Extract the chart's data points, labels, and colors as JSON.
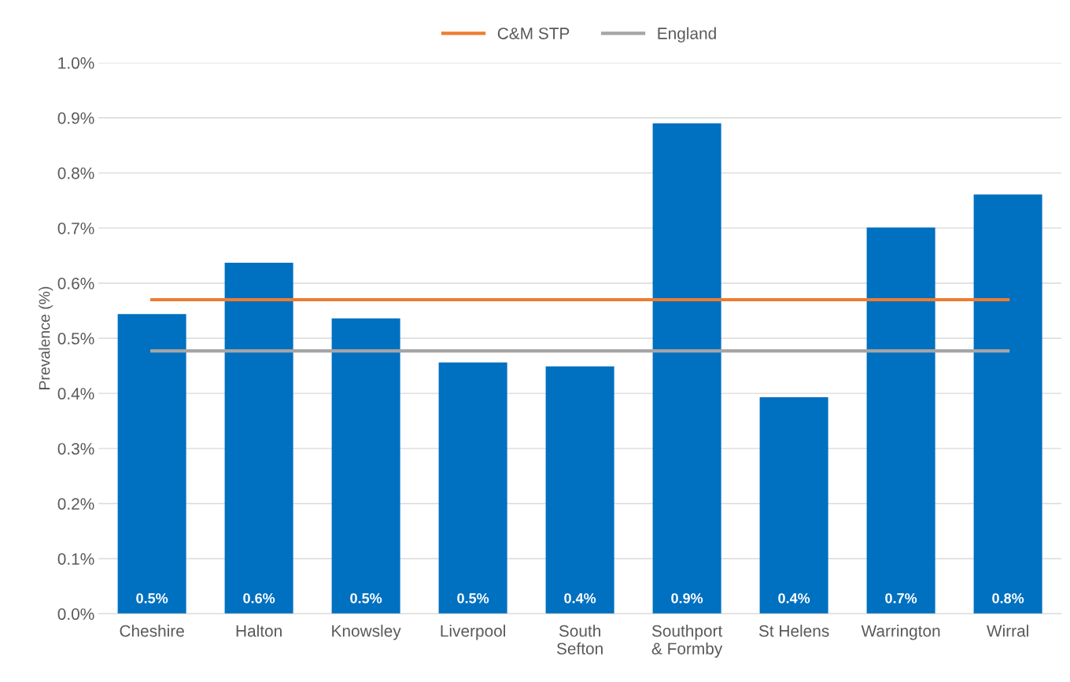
{
  "chart_data": {
    "type": "bar",
    "ylabel": "Prevalence (%)",
    "categories": [
      "Cheshire",
      "Halton",
      "Knowsley",
      "Liverpool",
      "South Sefton",
      "Southport & Formby",
      "St Helens",
      "Warrington",
      "Wirral"
    ],
    "series": [
      {
        "color": "#0070c0",
        "values": [
          0.544,
          0.637,
          0.536,
          0.456,
          0.449,
          0.89,
          0.393,
          0.701,
          0.761
        ],
        "value_labels": [
          "0.5%",
          "0.6%",
          "0.5%",
          "0.5%",
          "0.4%",
          "0.9%",
          "0.4%",
          "0.7%",
          "0.8%"
        ]
      },
      {
        "type": "line",
        "name": "C&M STP",
        "color": "#ed7d31",
        "values": [
          0.57,
          0.57,
          0.57,
          0.57,
          0.57,
          0.57,
          0.57,
          0.57,
          0.57
        ]
      },
      {
        "type": "line",
        "name": "England",
        "color": "#a5a5a5",
        "values": [
          0.477,
          0.477,
          0.477,
          0.477,
          0.477,
          0.477,
          0.477,
          0.477,
          0.477
        ]
      }
    ],
    "ylim": [
      0,
      1.0
    ],
    "yticks": [
      {
        "value": 0,
        "label": "0.0%"
      },
      {
        "value": 0.1,
        "label": "0.1%"
      },
      {
        "value": 0.2,
        "label": "0.2%"
      },
      {
        "value": 0.3,
        "label": "0.3%"
      },
      {
        "value": 0.4,
        "label": "0.4%"
      },
      {
        "value": 0.5,
        "label": "0.5%"
      },
      {
        "value": 0.6,
        "label": "0.6%"
      },
      {
        "value": 0.7,
        "label": "0.7%"
      },
      {
        "value": 0.8,
        "label": "0.8%"
      },
      {
        "value": 0.9,
        "label": "0.9%"
      },
      {
        "value": 1.0,
        "label": "1.0%"
      }
    ],
    "grid": "y",
    "legend": "top",
    "marker": "none",
    "line_style": "solid"
  }
}
